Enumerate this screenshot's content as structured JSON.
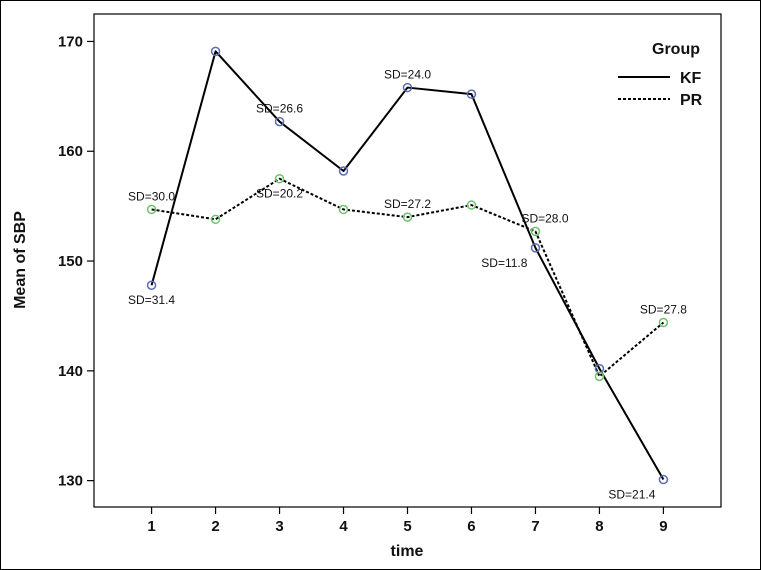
{
  "chart_data": {
    "type": "line",
    "title": "",
    "xlabel": "time",
    "ylabel": "Mean of SBP",
    "xlim": [
      0.1,
      9.9
    ],
    "ylim": [
      127.6,
      172.5
    ],
    "x_ticks": [
      1,
      2,
      3,
      4,
      5,
      6,
      7,
      8,
      9
    ],
    "y_ticks": [
      130,
      140,
      150,
      160,
      170
    ],
    "grid": false,
    "legend": {
      "title": "Group",
      "placement": "top-right"
    },
    "series": [
      {
        "name": "KF",
        "line_style": "solid",
        "marker_color": "#5b6bb5",
        "x": [
          1,
          2,
          3,
          4,
          5,
          6,
          7,
          8,
          9
        ],
        "y": [
          147.8,
          169.1,
          162.7,
          158.2,
          165.8,
          165.2,
          151.2,
          140.2,
          130.1
        ]
      },
      {
        "name": "PR",
        "line_style": "dotted",
        "marker_color": "#6cc36a",
        "x": [
          1,
          2,
          3,
          4,
          5,
          6,
          7,
          8,
          9
        ],
        "y": [
          154.7,
          153.8,
          157.5,
          154.7,
          154.0,
          155.1,
          152.7,
          139.5,
          144.4
        ]
      }
    ],
    "annotations": [
      {
        "text": "SD=31.4",
        "x": 1,
        "y": 147.8,
        "anchor": "below"
      },
      {
        "text": "SD=30.0",
        "x": 1,
        "y": 154.7,
        "anchor": "above"
      },
      {
        "text": "SD=26.6",
        "x": 3,
        "y": 162.7,
        "anchor": "above"
      },
      {
        "text": "SD=20.2",
        "x": 3,
        "y": 157.5,
        "anchor": "below"
      },
      {
        "text": "SD=24.0",
        "x": 5,
        "y": 165.8,
        "anchor": "above"
      },
      {
        "text": "SD=27.2",
        "x": 5,
        "y": 154.0,
        "anchor": "above"
      },
      {
        "text": "SD=11.8",
        "x": 7,
        "y": 151.2,
        "anchor": "left"
      },
      {
        "text": "SD=28.0",
        "x": 7,
        "y": 152.7,
        "anchor": "right"
      },
      {
        "text": "SD=27.8",
        "x": 9,
        "y": 144.4,
        "anchor": "above"
      },
      {
        "text": "SD=21.4",
        "x": 9,
        "y": 130.1,
        "anchor": "left"
      }
    ]
  }
}
